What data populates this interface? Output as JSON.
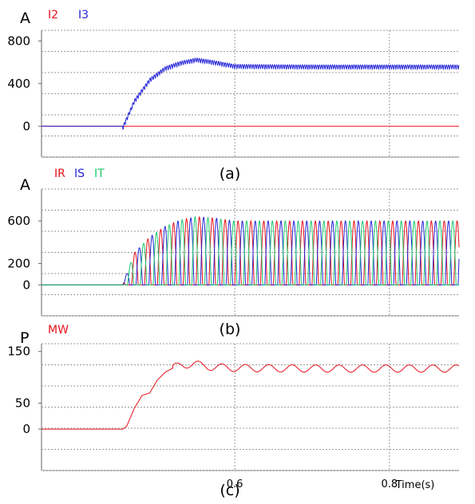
{
  "chart_data": [
    {
      "type": "line",
      "caption": "(a)",
      "unit": "A",
      "yticks": [
        0,
        400,
        800
      ],
      "ylim": [
        -290,
        900
      ],
      "grid": true,
      "legend_placement": "top-left",
      "series": [
        {
          "name": "I2",
          "color": "#e8111a",
          "x": [
            0.35,
            0.89
          ],
          "y": [
            0,
            0
          ]
        },
        {
          "name": "I3",
          "color": "#2424d8",
          "x": [
            0.35,
            0.455,
            0.47,
            0.49,
            0.51,
            0.53,
            0.55,
            0.57,
            0.6,
            0.7,
            0.8,
            0.89
          ],
          "y": [
            0,
            0,
            250,
            450,
            560,
            610,
            640,
            620,
            580,
            575,
            575,
            575
          ],
          "ripple_amplitude": 45
        }
      ]
    },
    {
      "type": "line",
      "caption": "(b)",
      "unit": "A",
      "yticks": [
        0,
        200,
        600
      ],
      "ylim": [
        -290,
        900
      ],
      "grid": true,
      "legend_placement": "top-left",
      "series": [
        {
          "name": "IR",
          "color": "#e8111a",
          "x": [
            0.35,
            0.455,
            0.47,
            0.49,
            0.51,
            0.53,
            0.55,
            0.57,
            0.6,
            0.7,
            0.8,
            0.89
          ],
          "y": [
            0,
            0,
            300,
            450,
            550,
            610,
            640,
            630,
            600,
            600,
            600,
            600
          ]
        },
        {
          "name": "IS",
          "color": "#2424d8",
          "x": [
            0.35,
            0.455,
            0.47,
            0.49,
            0.51,
            0.53,
            0.55,
            0.57,
            0.6,
            0.7,
            0.8,
            0.89
          ],
          "y": [
            0,
            0,
            300,
            450,
            550,
            610,
            640,
            630,
            600,
            600,
            600,
            600
          ]
        },
        {
          "name": "IT",
          "color": "#1cc86c",
          "x": [
            0.35,
            0.455,
            0.47,
            0.49,
            0.51,
            0.53,
            0.55,
            0.57,
            0.6,
            0.7,
            0.8,
            0.89
          ],
          "y": [
            0,
            0,
            300,
            450,
            550,
            610,
            640,
            630,
            600,
            600,
            600,
            600
          ]
        }
      ]
    },
    {
      "type": "line",
      "caption": "(c)",
      "unit": "P",
      "yticks": [
        0,
        50,
        150
      ],
      "ylim": [
        -80,
        165
      ],
      "grid": true,
      "legend_placement": "top-left",
      "xlabel": "Time(s)",
      "xticks": [
        0.6,
        0.8
      ],
      "xlim": [
        0.35,
        0.89
      ],
      "series": [
        {
          "name": "MW",
          "color": "#e8111a",
          "x": [
            0.35,
            0.455,
            0.46,
            0.47,
            0.48,
            0.49,
            0.5,
            0.51,
            0.52,
            0.53,
            0.55,
            0.57,
            0.6,
            0.7,
            0.8,
            0.89
          ],
          "y": [
            0,
            0,
            5,
            40,
            65,
            70,
            95,
            110,
            118,
            125,
            125,
            120,
            118,
            117,
            117,
            117
          ],
          "ripple_amplitude": 7
        }
      ]
    }
  ]
}
